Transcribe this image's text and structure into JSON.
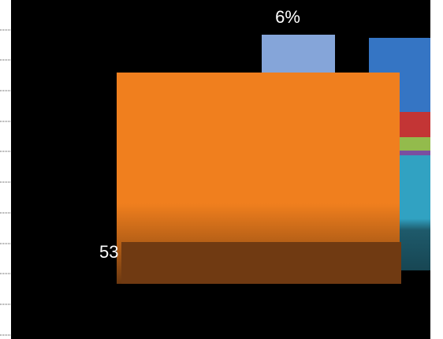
{
  "chart_data": {
    "type": "bar",
    "title": "",
    "series": [
      {
        "name": "",
        "color": "#f07f1e",
        "value_label": "53",
        "value": 53
      },
      {
        "name": "",
        "color": "#85a5d9",
        "value_label": "6%",
        "value": 6
      }
    ],
    "stacked_segments": [
      {
        "color": "#3575c4"
      },
      {
        "color": "#c33535"
      },
      {
        "color": "#93bb4c"
      },
      {
        "color": "#7a4fa0"
      },
      {
        "color": "#31a2c2"
      }
    ],
    "background": "#000000",
    "grid": false,
    "legend": "none"
  }
}
